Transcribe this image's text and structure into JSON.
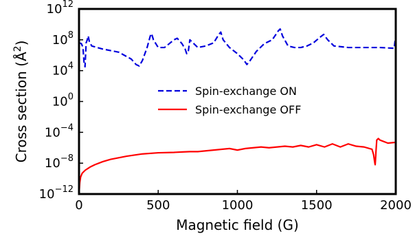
{
  "chart_data": {
    "type": "line",
    "xlabel": "Magnetic field (G)",
    "ylabel": "Cross section (Å²)",
    "xlim": [
      0,
      2000
    ],
    "ylim_log10": [
      -12,
      12
    ],
    "yscale": "log",
    "grid": false,
    "legend_placement": "center",
    "x_ticks": [
      {
        "value": 0,
        "label": "0"
      },
      {
        "value": 500,
        "label": "500"
      },
      {
        "value": 1000,
        "label": "1000"
      },
      {
        "value": 1500,
        "label": "1500"
      },
      {
        "value": 2000,
        "label": "2000"
      }
    ],
    "y_ticks": [
      {
        "exp": -12,
        "base": "10",
        "sup": "−12"
      },
      {
        "exp": -8,
        "base": "10",
        "sup": "−8"
      },
      {
        "exp": -4,
        "base": "10",
        "sup": "−4"
      },
      {
        "exp": 0,
        "base": "10",
        "sup": "0"
      },
      {
        "exp": 4,
        "base": "10",
        "sup": "4"
      },
      {
        "exp": 8,
        "base": "10",
        "sup": "8"
      },
      {
        "exp": 12,
        "base": "10",
        "sup": "12"
      }
    ],
    "series": [
      {
        "name": "Spin-exchange ON",
        "color": "#0000dd",
        "style": "dashed",
        "x": [
          0,
          15,
          25,
          32,
          38,
          45,
          52,
          58,
          65,
          80,
          150,
          250,
          330,
          360,
          380,
          400,
          430,
          450,
          458,
          470,
          500,
          540,
          570,
          600,
          620,
          650,
          670,
          680,
          690,
          700,
          720,
          750,
          800,
          850,
          880,
          895,
          910,
          950,
          1000,
          1040,
          1060,
          1080,
          1120,
          1170,
          1220,
          1260,
          1270,
          1285,
          1320,
          1360,
          1400,
          1440,
          1480,
          1520,
          1545,
          1570,
          1610,
          1700,
          1800,
          1900,
          1990,
          1995,
          2000
        ],
        "log10_y": [
          7.6,
          7.5,
          7.0,
          5.0,
          4.5,
          7.6,
          8.0,
          8.5,
          7.8,
          7.2,
          6.8,
          6.4,
          5.5,
          4.8,
          4.6,
          5.3,
          7.0,
          8.5,
          8.8,
          8.0,
          7.0,
          7.0,
          7.5,
          8.0,
          8.2,
          7.5,
          6.8,
          6.2,
          6.5,
          8.0,
          7.6,
          7.0,
          7.2,
          7.6,
          8.6,
          9.0,
          8.0,
          7.0,
          6.2,
          5.4,
          4.8,
          5.3,
          6.5,
          7.5,
          8.0,
          9.2,
          9.4,
          8.5,
          7.2,
          7.0,
          7.0,
          7.2,
          7.6,
          8.3,
          8.7,
          8.0,
          7.2,
          7.0,
          7.0,
          7.0,
          6.9,
          7.8,
          8.1
        ]
      },
      {
        "name": "Spin-exchange OFF",
        "color": "#ff0000",
        "style": "solid",
        "x": [
          0,
          5,
          10,
          20,
          40,
          70,
          100,
          150,
          200,
          300,
          400,
          500,
          600,
          650,
          700,
          750,
          800,
          850,
          900,
          950,
          1000,
          1050,
          1100,
          1150,
          1200,
          1250,
          1300,
          1350,
          1400,
          1450,
          1500,
          1550,
          1600,
          1650,
          1700,
          1750,
          1800,
          1850,
          1860,
          1865,
          1868,
          1870,
          1872,
          1875,
          1880,
          1890,
          1900,
          1950,
          2000
        ],
        "log10_y": [
          -12.0,
          -10.5,
          -9.8,
          -9.3,
          -8.9,
          -8.5,
          -8.2,
          -7.8,
          -7.5,
          -7.1,
          -6.8,
          -6.65,
          -6.6,
          -6.55,
          -6.5,
          -6.5,
          -6.4,
          -6.3,
          -6.2,
          -6.1,
          -6.3,
          -6.1,
          -6.0,
          -5.9,
          -6.0,
          -5.9,
          -5.8,
          -5.9,
          -5.7,
          -5.9,
          -5.6,
          -5.9,
          -5.5,
          -5.9,
          -5.5,
          -5.8,
          -5.9,
          -6.2,
          -6.9,
          -7.6,
          -8.0,
          -8.2,
          -7.6,
          -6.5,
          -5.0,
          -4.8,
          -5.0,
          -5.4,
          -5.3
        ]
      }
    ]
  }
}
